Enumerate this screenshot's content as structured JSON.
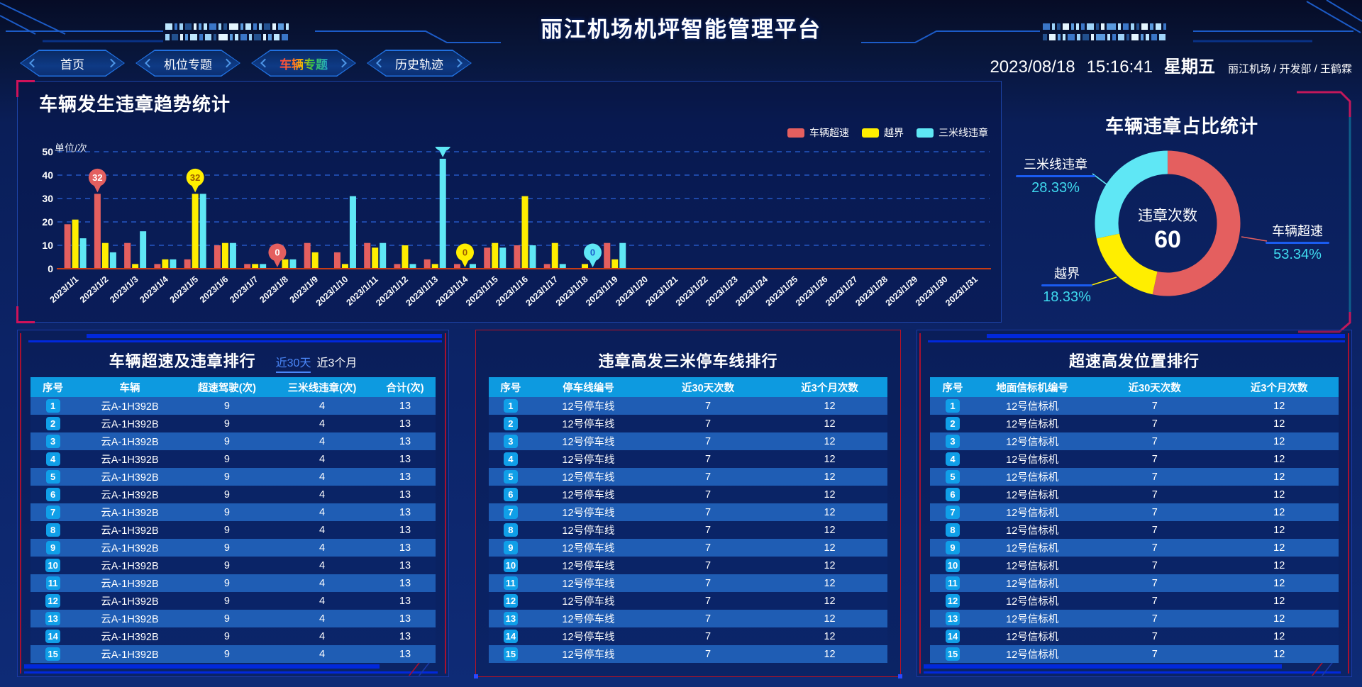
{
  "header": {
    "title": "丽江机场机坪智能管理平台",
    "nav": [
      {
        "label": "首页",
        "active": false
      },
      {
        "label": "机位专题",
        "active": false
      },
      {
        "label": "车辆专题",
        "active": true
      },
      {
        "label": "历史轨迹",
        "active": false
      }
    ],
    "date": "2023/08/18",
    "time": "15:16:41",
    "weekday": "星期五",
    "user_info": "丽江机场 / 开发部 / 王鹤霖"
  },
  "trend_panel": {
    "title": "车辆发生违章趋势统计",
    "unit_label": "单位/次"
  },
  "donut_panel": {
    "title": "车辆违章占比统计"
  },
  "chart_data": [
    {
      "type": "bar",
      "title": "车辆发生违章趋势统计",
      "xlabel": "",
      "ylabel": "单位/次",
      "ylim": [
        0,
        50
      ],
      "yticks": [
        0,
        10,
        20,
        30,
        40,
        50
      ],
      "grid": true,
      "legend_position": "top-right",
      "categories": [
        "2023/1/1",
        "2023/1/2",
        "2023/1/3",
        "2023/1/4",
        "2023/1/5",
        "2023/1/6",
        "2023/1/7",
        "2023/1/8",
        "2023/1/9",
        "2023/1/10",
        "2023/1/11",
        "2023/1/12",
        "2023/1/13",
        "2023/1/14",
        "2023/1/15",
        "2023/1/16",
        "2023/1/17",
        "2023/1/18",
        "2023/1/19",
        "2023/1/20",
        "2023/1/21",
        "2023/1/22",
        "2023/1/23",
        "2023/1/24",
        "2023/1/25",
        "2023/1/26",
        "2023/1/27",
        "2023/1/28",
        "2023/1/29",
        "2023/1/30",
        "2023/1/31"
      ],
      "series": [
        {
          "name": "车辆超速",
          "color": "#e45f5f",
          "values": [
            19,
            32,
            11,
            2,
            4,
            10,
            2,
            0,
            11,
            7,
            11,
            2,
            4,
            2,
            9,
            10,
            2,
            0,
            11,
            0,
            0,
            0,
            0,
            0,
            0,
            0,
            0,
            0,
            0,
            0,
            0
          ]
        },
        {
          "name": "越界",
          "color": "#ffee00",
          "values": [
            21,
            11,
            2,
            4,
            32,
            11,
            2,
            4,
            7,
            2,
            9,
            10,
            2,
            0,
            11,
            31,
            11,
            2,
            4,
            0,
            0,
            0,
            0,
            0,
            0,
            0,
            0,
            0,
            0,
            0,
            0
          ]
        },
        {
          "name": "三米线违章",
          "color": "#5fe7f5",
          "values": [
            13,
            7,
            16,
            4,
            32,
            11,
            2,
            4,
            0,
            31,
            11,
            2,
            47,
            2,
            9,
            10,
            2,
            0,
            11,
            0,
            0,
            0,
            0,
            0,
            0,
            0,
            0,
            0,
            0,
            0,
            0
          ]
        }
      ],
      "markers": [
        {
          "category": "2023/1/2",
          "series": "车辆超速",
          "value": 32
        },
        {
          "category": "2023/1/5",
          "series": "越界",
          "value": 32
        },
        {
          "category": "2023/1/8",
          "series": "车辆超速",
          "value": 0
        },
        {
          "category": "2023/1/13",
          "series": "三米线违章",
          "value": 47
        },
        {
          "category": "2023/1/14",
          "series": "越界",
          "value": 0
        },
        {
          "category": "2023/1/18",
          "series": "三米线违章",
          "value": 0
        }
      ]
    },
    {
      "type": "pie",
      "title": "车辆违章占比统计",
      "center_label": "违章次数",
      "center_value": "60",
      "slices": [
        {
          "name": "车辆超速",
          "pct": 53.34,
          "color": "#e45f5f"
        },
        {
          "name": "越界",
          "pct": 18.33,
          "color": "#ffee00"
        },
        {
          "name": "三米线违章",
          "pct": 28.33,
          "color": "#5fe7f5"
        }
      ]
    }
  ],
  "tables": [
    {
      "title": "车辆超速及违章排行",
      "tabs": [
        {
          "label": "近30天",
          "active": true
        },
        {
          "label": "近3个月",
          "active": false
        }
      ],
      "columns": [
        "序号",
        "车辆",
        "超速驾驶(次)",
        "三米线违章(次)",
        "合计(次)"
      ],
      "rows": [
        [
          "1",
          "云A-1H392B",
          "9",
          "4",
          "13"
        ],
        [
          "2",
          "云A-1H392B",
          "9",
          "4",
          "13"
        ],
        [
          "3",
          "云A-1H392B",
          "9",
          "4",
          "13"
        ],
        [
          "4",
          "云A-1H392B",
          "9",
          "4",
          "13"
        ],
        [
          "5",
          "云A-1H392B",
          "9",
          "4",
          "13"
        ],
        [
          "6",
          "云A-1H392B",
          "9",
          "4",
          "13"
        ],
        [
          "7",
          "云A-1H392B",
          "9",
          "4",
          "13"
        ],
        [
          "8",
          "云A-1H392B",
          "9",
          "4",
          "13"
        ],
        [
          "9",
          "云A-1H392B",
          "9",
          "4",
          "13"
        ],
        [
          "10",
          "云A-1H392B",
          "9",
          "4",
          "13"
        ],
        [
          "11",
          "云A-1H392B",
          "9",
          "4",
          "13"
        ],
        [
          "12",
          "云A-1H392B",
          "9",
          "4",
          "13"
        ],
        [
          "13",
          "云A-1H392B",
          "9",
          "4",
          "13"
        ],
        [
          "14",
          "云A-1H392B",
          "9",
          "4",
          "13"
        ],
        [
          "15",
          "云A-1H392B",
          "9",
          "4",
          "13"
        ]
      ]
    },
    {
      "title": "违章高发三米停车线排行",
      "tabs": [],
      "columns": [
        "序号",
        "停车线编号",
        "近30天次数",
        "近3个月次数"
      ],
      "rows": [
        [
          "1",
          "12号停车线",
          "7",
          "12"
        ],
        [
          "2",
          "12号停车线",
          "7",
          "12"
        ],
        [
          "3",
          "12号停车线",
          "7",
          "12"
        ],
        [
          "4",
          "12号停车线",
          "7",
          "12"
        ],
        [
          "5",
          "12号停车线",
          "7",
          "12"
        ],
        [
          "6",
          "12号停车线",
          "7",
          "12"
        ],
        [
          "7",
          "12号停车线",
          "7",
          "12"
        ],
        [
          "8",
          "12号停车线",
          "7",
          "12"
        ],
        [
          "9",
          "12号停车线",
          "7",
          "12"
        ],
        [
          "10",
          "12号停车线",
          "7",
          "12"
        ],
        [
          "11",
          "12号停车线",
          "7",
          "12"
        ],
        [
          "12",
          "12号停车线",
          "7",
          "12"
        ],
        [
          "13",
          "12号停车线",
          "7",
          "12"
        ],
        [
          "14",
          "12号停车线",
          "7",
          "12"
        ],
        [
          "15",
          "12号停车线",
          "7",
          "12"
        ]
      ]
    },
    {
      "title": "超速高发位置排行",
      "tabs": [],
      "columns": [
        "序号",
        "地面信标机编号",
        "近30天次数",
        "近3个月次数"
      ],
      "rows": [
        [
          "1",
          "12号信标机",
          "7",
          "12"
        ],
        [
          "2",
          "12号信标机",
          "7",
          "12"
        ],
        [
          "3",
          "12号信标机",
          "7",
          "12"
        ],
        [
          "4",
          "12号信标机",
          "7",
          "12"
        ],
        [
          "5",
          "12号信标机",
          "7",
          "12"
        ],
        [
          "6",
          "12号信标机",
          "7",
          "12"
        ],
        [
          "7",
          "12号信标机",
          "7",
          "12"
        ],
        [
          "8",
          "12号信标机",
          "7",
          "12"
        ],
        [
          "9",
          "12号信标机",
          "7",
          "12"
        ],
        [
          "10",
          "12号信标机",
          "7",
          "12"
        ],
        [
          "11",
          "12号信标机",
          "7",
          "12"
        ],
        [
          "12",
          "12号信标机",
          "7",
          "12"
        ],
        [
          "13",
          "12号信标机",
          "7",
          "12"
        ],
        [
          "14",
          "12号信标机",
          "7",
          "12"
        ],
        [
          "15",
          "12号信标机",
          "7",
          "12"
        ]
      ]
    }
  ],
  "colors": {
    "series_red": "#e45f5f",
    "series_yellow": "#ffee00",
    "series_cyan": "#5fe7f5",
    "axis_line": "#c83c14",
    "gridline": "#2a62d8",
    "table_header_bg": "#0d9ae0",
    "row_odd": "#1f5db4",
    "tab_active": "#4a86f8",
    "corner_accent": "#cf125a",
    "deco_bar": "#0128dc"
  }
}
